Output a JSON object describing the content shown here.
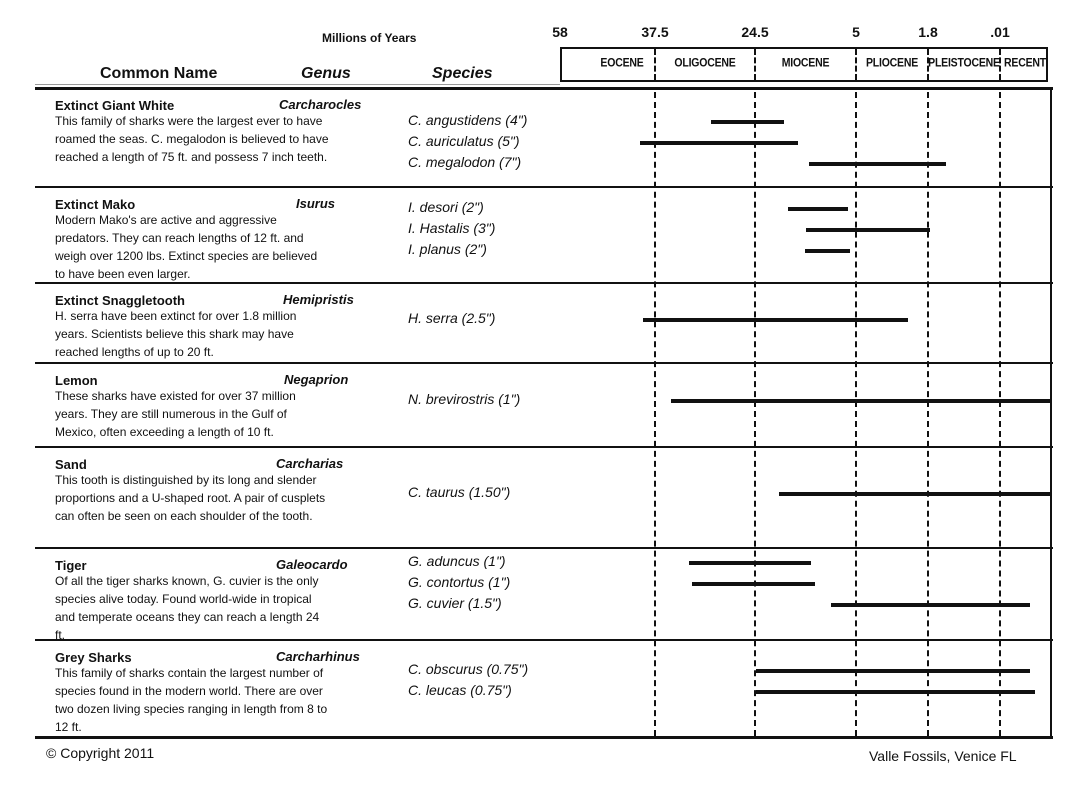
{
  "header": {
    "axis_title": "Millions of Years",
    "col_common_name": "Common Name",
    "col_genus": "Genus",
    "col_species": "Species"
  },
  "timeline": {
    "ticks": [
      {
        "value": 58,
        "label": "58"
      },
      {
        "value": 37.5,
        "label": "37.5"
      },
      {
        "value": 24.5,
        "label": "24.5"
      },
      {
        "value": 5,
        "label": "5"
      },
      {
        "value": 1.8,
        "label": "1.8"
      },
      {
        "value": 0.01,
        "label": ".01"
      },
      {
        "value": 0,
        "label": ""
      }
    ],
    "epochs": [
      {
        "name": "EOCENE",
        "from": 58,
        "to": 37.5
      },
      {
        "name": "OLIGOCENE",
        "from": 37.5,
        "to": 24.5
      },
      {
        "name": "MIOCENE",
        "from": 24.5,
        "to": 5
      },
      {
        "name": "PLIOCENE",
        "from": 5,
        "to": 1.8
      },
      {
        "name": "PLEISTOCENE",
        "from": 1.8,
        "to": 0.01
      },
      {
        "name": "RECENT",
        "from": 0.01,
        "to": 0
      }
    ]
  },
  "rows": [
    {
      "name": "Extinct Giant White",
      "genus": "Carcharocles",
      "description": "This family of sharks were the largest ever to have roamed the seas. C. megalodon is believed to have reached a length of 75 ft. and possess 7 inch teeth.",
      "species": [
        {
          "label": "C. angustidens (4\")",
          "from_mya": 30.2,
          "to_mya": 18.9
        },
        {
          "label": "C. auriculatus (5\")",
          "from_mya": 40.7,
          "to_mya": 16.2
        },
        {
          "label": "C. megalodon (7\")",
          "from_mya": 14.1,
          "to_mya": 1.35
        }
      ]
    },
    {
      "name": "Extinct Mako",
      "genus": "Isurus",
      "description": "Modern Mako's are active and aggressive predators. They can reach lengths of 12 ft. and weigh over 1200 lbs. Extinct species are believed to have been even larger.",
      "species": [
        {
          "label": "I. desori (2\")",
          "from_mya": 18.1,
          "to_mya": 6.5
        },
        {
          "label": "I. Hastalis (3\")",
          "from_mya": 14.7,
          "to_mya": 1.75
        },
        {
          "label": "I. planus (2\")",
          "from_mya": 14.9,
          "to_mya": 6.2
        }
      ]
    },
    {
      "name": "Extinct Snaggletooth",
      "genus": "Hemipristis",
      "description": "H. serra have been extinct for over 1.8 million years. Scientists believe this shark may have reached lengths of up to 20 ft.",
      "species": [
        {
          "label": "H. serra (2.5\")",
          "from_mya": 40.1,
          "to_mya": 2.7
        }
      ]
    },
    {
      "name": "Lemon",
      "genus": "Negaprion",
      "description": "These sharks have existed for over 37 million years. They are still numerous in the Gulf of Mexico, often exceeding a length of 10 ft.",
      "species": [
        {
          "label": "N. brevirostris (1\")",
          "from_mya": 35.4,
          "to_mya": 0
        }
      ]
    },
    {
      "name": "Sand",
      "genus": "Carcharias",
      "description": "This tooth is distinguished by its long and slender proportions and a U-shaped root. A pair of cusplets can often be seen on each shoulder of the tooth.",
      "species": [
        {
          "label": "C. taurus (1.50\")",
          "from_mya": 19.9,
          "to_mya": 0
        }
      ]
    },
    {
      "name": "Tiger",
      "genus": "Galeocardo",
      "description": "Of all the tiger sharks known, G. cuvier is the only species alive today. Found world-wide in tropical and temperate oceans they can reach a length 24 ft.",
      "species": [
        {
          "label": "G. aduncus (1\")",
          "from_mya": 33.1,
          "to_mya": 13.7
        },
        {
          "label": "G. contortus (1\")",
          "from_mya": 32.7,
          "to_mya": 13.0
        },
        {
          "label": "G. cuvier (1.5\")",
          "from_mya": 9.8,
          "to_mya": 0.004
        }
      ]
    },
    {
      "name": "Grey Sharks",
      "genus": "Carcharhinus",
      "description": "This family of sharks contain the largest number of species found in the modern world. There are over two dozen living species ranging in length from 8 to 12 ft.",
      "species": [
        {
          "label": "C. obscurus (0.75\")",
          "from_mya": 24.3,
          "to_mya": 0.004
        },
        {
          "label": "C. leucas (0.75\")",
          "from_mya": 24.3,
          "to_mya": 0.003
        }
      ]
    }
  ],
  "footer": {
    "copyright": "© Copyright 2011",
    "publisher": "Valle Fossils, Venice FL"
  }
}
